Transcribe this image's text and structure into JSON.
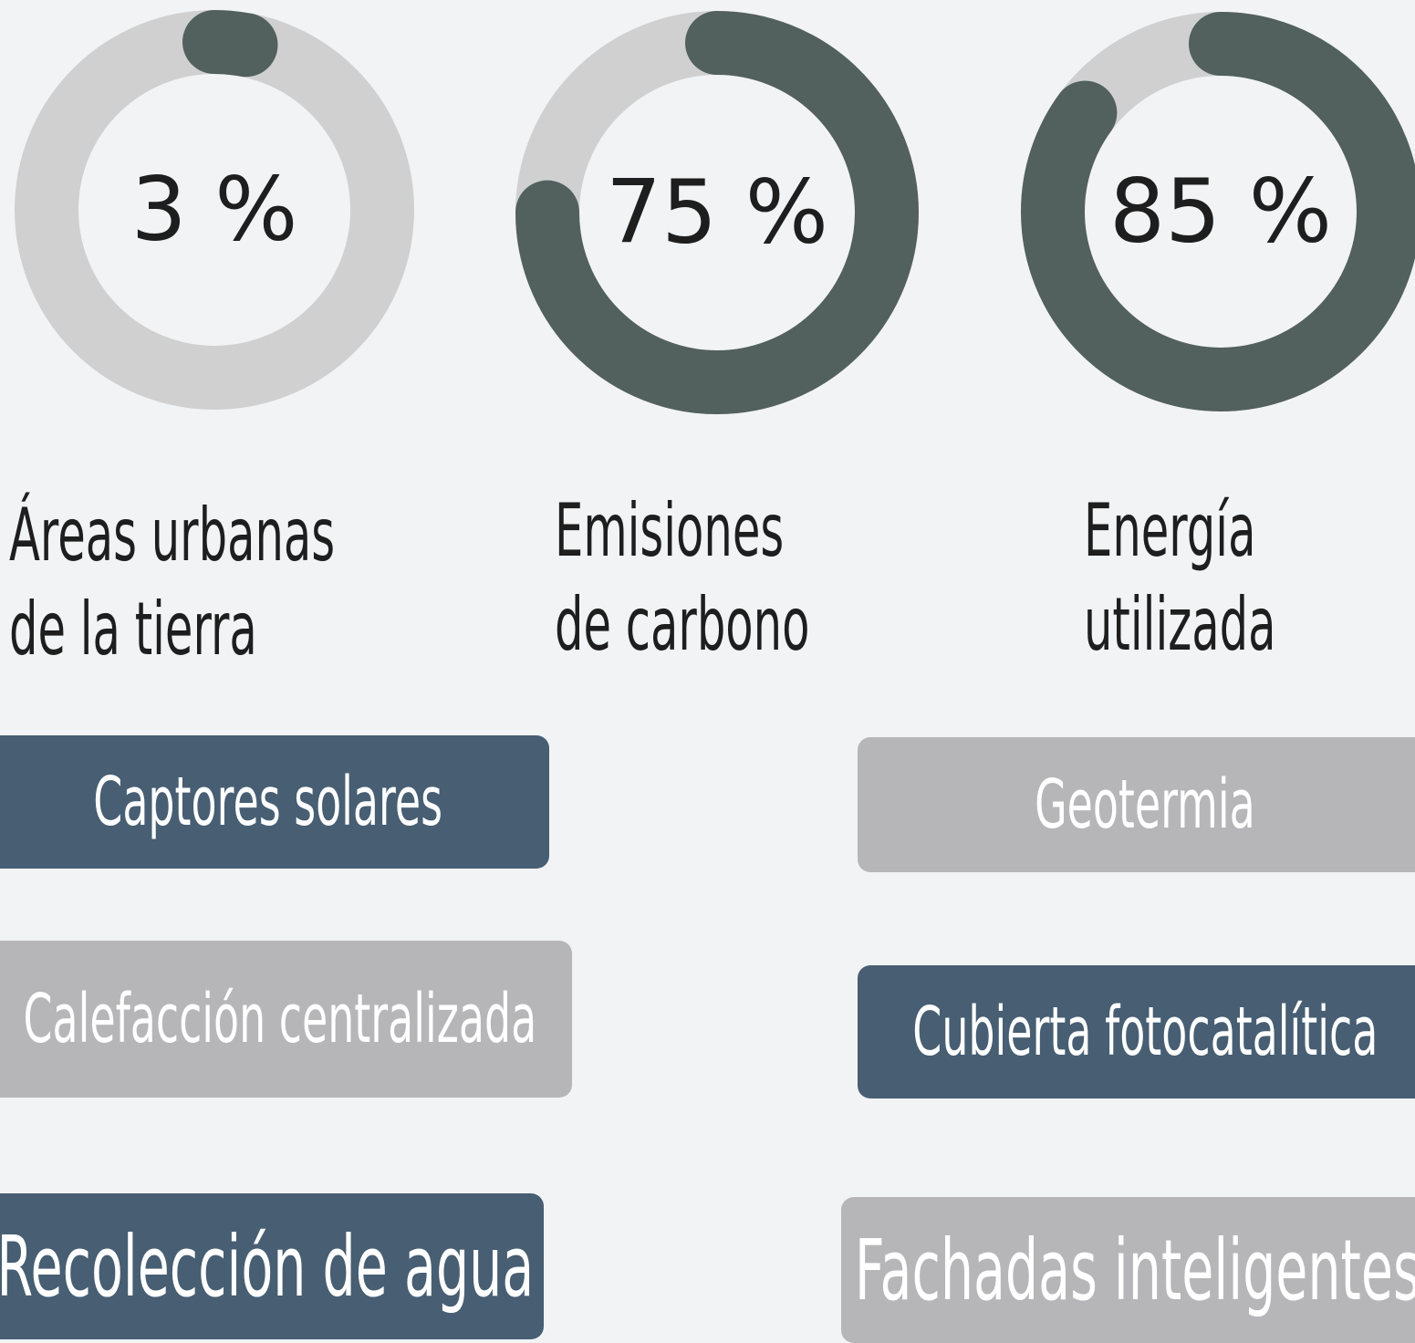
{
  "gauges": [
    {
      "value": 3,
      "label": "3 %",
      "caption": [
        "Áreas urbanas",
        "de la tierra"
      ]
    },
    {
      "value": 75,
      "label": "75 %",
      "caption": [
        "Emisiones",
        "de carbono"
      ]
    },
    {
      "value": 85,
      "label": "85 %",
      "caption": [
        "Energía",
        "utilizada"
      ]
    }
  ],
  "buttons": [
    "Captores solares",
    "Geotermia",
    "Calefacción centralizada",
    "Cubierta fotocatalítica",
    "Recolección de agua",
    "Fachadas inteligentes"
  ]
}
